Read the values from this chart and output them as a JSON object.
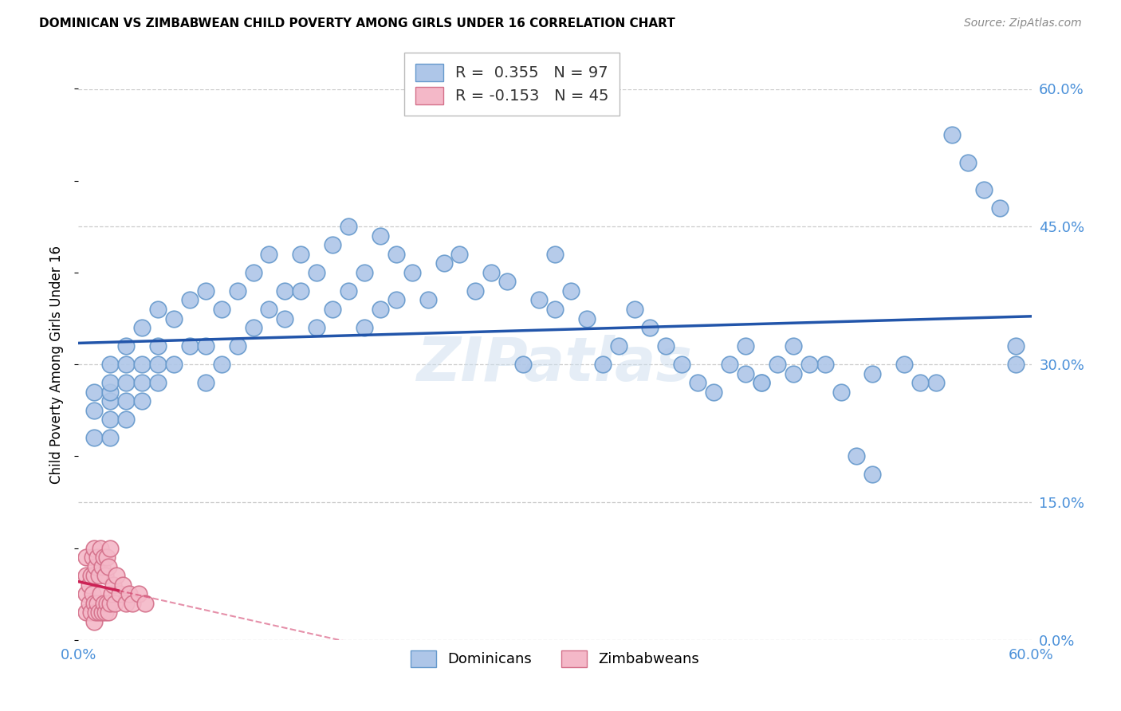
{
  "title": "DOMINICAN VS ZIMBABWEAN CHILD POVERTY AMONG GIRLS UNDER 16 CORRELATION CHART",
  "source": "Source: ZipAtlas.com",
  "tick_color": "#4a90d9",
  "ylabel": "Child Poverty Among Girls Under 16",
  "xlim": [
    0.0,
    0.6
  ],
  "ylim": [
    0.0,
    0.6
  ],
  "yticks": [
    0.0,
    0.15,
    0.3,
    0.45,
    0.6
  ],
  "ytick_labels_right": [
    "0.0%",
    "15.0%",
    "30.0%",
    "45.0%",
    "60.0%"
  ],
  "xtick_left_label": "0.0%",
  "xtick_right_label": "60.0%",
  "background_color": "#ffffff",
  "grid_color": "#cccccc",
  "watermark": "ZIPatlas",
  "dominicans_color": "#aec6e8",
  "dominicans_edge_color": "#6699cc",
  "zimbabweans_color": "#f4b8c8",
  "zimbabweans_edge_color": "#d4708a",
  "dominicans_line_color": "#2255aa",
  "zimbabweans_line_color": "#cc2255",
  "legend_R1": "R =  0.355",
  "legend_N1": "N = 97",
  "legend_R2": "R = -0.153",
  "legend_N2": "N = 45",
  "dom_scatter_x": [
    0.01,
    0.01,
    0.01,
    0.02,
    0.02,
    0.02,
    0.02,
    0.02,
    0.02,
    0.03,
    0.03,
    0.03,
    0.03,
    0.03,
    0.04,
    0.04,
    0.04,
    0.04,
    0.05,
    0.05,
    0.05,
    0.05,
    0.06,
    0.06,
    0.07,
    0.07,
    0.08,
    0.08,
    0.08,
    0.09,
    0.09,
    0.1,
    0.1,
    0.11,
    0.11,
    0.12,
    0.12,
    0.13,
    0.13,
    0.14,
    0.14,
    0.15,
    0.15,
    0.16,
    0.16,
    0.17,
    0.17,
    0.18,
    0.18,
    0.19,
    0.19,
    0.2,
    0.2,
    0.21,
    0.22,
    0.23,
    0.24,
    0.25,
    0.26,
    0.27,
    0.28,
    0.29,
    0.3,
    0.3,
    0.31,
    0.32,
    0.33,
    0.34,
    0.35,
    0.36,
    0.37,
    0.38,
    0.39,
    0.4,
    0.41,
    0.42,
    0.43,
    0.44,
    0.45,
    0.47,
    0.49,
    0.5,
    0.52,
    0.54,
    0.55,
    0.56,
    0.57,
    0.58,
    0.59,
    0.59,
    0.42,
    0.43,
    0.45,
    0.46,
    0.48,
    0.5,
    0.53
  ],
  "dom_scatter_y": [
    0.22,
    0.25,
    0.27,
    0.22,
    0.24,
    0.26,
    0.27,
    0.28,
    0.3,
    0.24,
    0.26,
    0.28,
    0.3,
    0.32,
    0.26,
    0.28,
    0.3,
    0.34,
    0.28,
    0.3,
    0.32,
    0.36,
    0.3,
    0.35,
    0.32,
    0.37,
    0.28,
    0.32,
    0.38,
    0.3,
    0.36,
    0.32,
    0.38,
    0.34,
    0.4,
    0.36,
    0.42,
    0.35,
    0.38,
    0.38,
    0.42,
    0.34,
    0.4,
    0.36,
    0.43,
    0.38,
    0.45,
    0.34,
    0.4,
    0.36,
    0.44,
    0.37,
    0.42,
    0.4,
    0.37,
    0.41,
    0.42,
    0.38,
    0.4,
    0.39,
    0.3,
    0.37,
    0.36,
    0.42,
    0.38,
    0.35,
    0.3,
    0.32,
    0.36,
    0.34,
    0.32,
    0.3,
    0.28,
    0.27,
    0.3,
    0.32,
    0.28,
    0.3,
    0.32,
    0.3,
    0.2,
    0.18,
    0.3,
    0.28,
    0.55,
    0.52,
    0.49,
    0.47,
    0.32,
    0.3,
    0.29,
    0.28,
    0.29,
    0.3,
    0.27,
    0.29,
    0.28
  ],
  "zim_scatter_x": [
    0.005,
    0.005,
    0.005,
    0.005,
    0.007,
    0.007,
    0.008,
    0.008,
    0.009,
    0.009,
    0.01,
    0.01,
    0.01,
    0.01,
    0.011,
    0.011,
    0.012,
    0.012,
    0.013,
    0.013,
    0.014,
    0.014,
    0.015,
    0.015,
    0.016,
    0.016,
    0.017,
    0.017,
    0.018,
    0.018,
    0.019,
    0.019,
    0.02,
    0.02,
    0.021,
    0.022,
    0.023,
    0.024,
    0.026,
    0.028,
    0.03,
    0.032,
    0.034,
    0.038,
    0.042
  ],
  "zim_scatter_y": [
    0.03,
    0.05,
    0.07,
    0.09,
    0.04,
    0.06,
    0.03,
    0.07,
    0.05,
    0.09,
    0.02,
    0.04,
    0.07,
    0.1,
    0.03,
    0.08,
    0.04,
    0.09,
    0.03,
    0.07,
    0.05,
    0.1,
    0.03,
    0.08,
    0.04,
    0.09,
    0.03,
    0.07,
    0.04,
    0.09,
    0.03,
    0.08,
    0.04,
    0.1,
    0.05,
    0.06,
    0.04,
    0.07,
    0.05,
    0.06,
    0.04,
    0.05,
    0.04,
    0.05,
    0.04
  ],
  "zim_line_x0": 0.0,
  "zim_line_x_solid_end": 0.025,
  "zim_line_x1": 0.6,
  "dom_line_x0": 0.0,
  "dom_line_x1": 0.6
}
